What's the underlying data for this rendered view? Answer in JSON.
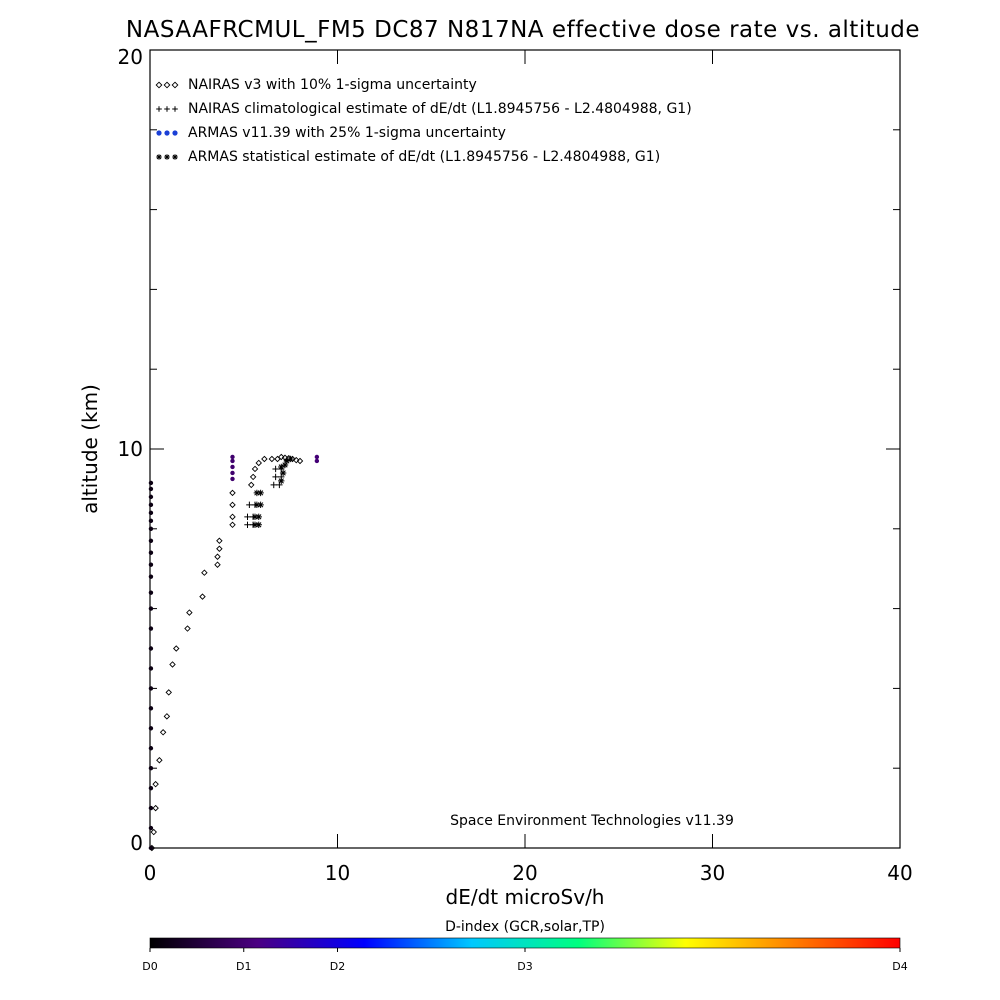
{
  "chart_data": {
    "type": "scatter",
    "title": "NASAAFRCMUL_FM5 DC87 N817NA effective dose rate vs. altitude",
    "xlabel": "dE/dt microSv/h",
    "ylabel": "altitude (km)",
    "xlim": [
      0,
      40
    ],
    "ylim": [
      0,
      20
    ],
    "x_ticks": [
      "0",
      "10",
      "20",
      "30",
      "40"
    ],
    "y_ticks": [
      "0",
      "10",
      "20"
    ],
    "legend_placement": "top-left",
    "legend": [
      {
        "marker": "diamond",
        "color": "#000000",
        "label": "NAIRAS v3 with 10% 1-sigma uncertainty"
      },
      {
        "marker": "plus",
        "color": "#000000",
        "label": "NAIRAS climatological estimate of dE/dt (L1.8945756 - L2.4804988, G1)"
      },
      {
        "marker": "dot",
        "color": "#1a3fd6",
        "label": "ARMAS v11.39 with 25% 1-sigma uncertainty"
      },
      {
        "marker": "asterisk",
        "color": "#000000",
        "label": "ARMAS statistical estimate of dE/dt (L1.8945756 - L2.4804988, G1)"
      }
    ],
    "annotation": "Space Environment Technologies v11.39",
    "colorbar": {
      "title": "D-index (GCR,solar,TP)",
      "labels": [
        {
          "text": "D0",
          "pos": 0
        },
        {
          "text": "D1",
          "pos": 0.125
        },
        {
          "text": "D2",
          "pos": 0.25
        },
        {
          "text": "D3",
          "pos": 0.5
        },
        {
          "text": "D4",
          "pos": 1
        }
      ],
      "colors": [
        "#000000",
        "#4b0082",
        "#0000ff",
        "#00c8ff",
        "#00ff7f",
        "#ffff00",
        "#ff7f00",
        "#ff0000"
      ]
    },
    "series": [
      {
        "kind": "nairas",
        "marker": "diamond",
        "color": "#000000",
        "points": [
          [
            0.1,
            0.0
          ],
          [
            0.2,
            0.4
          ],
          [
            0.3,
            1.0
          ],
          [
            0.3,
            1.6
          ],
          [
            0.5,
            2.2
          ],
          [
            0.7,
            2.9
          ],
          [
            0.9,
            3.3
          ],
          [
            1.0,
            3.9
          ],
          [
            1.2,
            4.6
          ],
          [
            1.4,
            5.0
          ],
          [
            2.0,
            5.5
          ],
          [
            2.1,
            5.9
          ],
          [
            2.8,
            6.3
          ],
          [
            2.9,
            6.9
          ],
          [
            3.6,
            7.1
          ],
          [
            3.6,
            7.3
          ],
          [
            3.7,
            7.5
          ],
          [
            3.7,
            7.7
          ],
          [
            4.4,
            8.1
          ],
          [
            4.4,
            8.3
          ],
          [
            4.4,
            8.6
          ],
          [
            4.4,
            8.9
          ],
          [
            5.4,
            9.1
          ],
          [
            5.5,
            9.3
          ],
          [
            5.6,
            9.5
          ],
          [
            5.8,
            9.65
          ],
          [
            6.1,
            9.75
          ],
          [
            6.5,
            9.75
          ],
          [
            6.8,
            9.75
          ],
          [
            7.0,
            9.8
          ],
          [
            7.2,
            9.78
          ],
          [
            7.4,
            9.77
          ],
          [
            7.6,
            9.75
          ],
          [
            7.8,
            9.72
          ],
          [
            8.0,
            9.7
          ]
        ]
      },
      {
        "kind": "nairas_climatological",
        "marker": "plus",
        "color": "#000000",
        "points": [
          [
            5.2,
            8.1
          ],
          [
            5.5,
            8.1
          ],
          [
            5.2,
            8.3
          ],
          [
            5.5,
            8.3
          ],
          [
            5.3,
            8.6
          ],
          [
            5.6,
            8.6
          ],
          [
            6.6,
            9.1
          ],
          [
            6.9,
            9.1
          ],
          [
            6.7,
            9.3
          ],
          [
            7.0,
            9.3
          ],
          [
            6.7,
            9.5
          ],
          [
            7.0,
            9.5
          ]
        ]
      },
      {
        "kind": "armas_statistical",
        "marker": "asterisk",
        "color": "#000000",
        "points": [
          [
            5.6,
            8.1
          ],
          [
            5.8,
            8.1
          ],
          [
            5.6,
            8.3
          ],
          [
            5.8,
            8.3
          ],
          [
            5.7,
            8.6
          ],
          [
            5.9,
            8.6
          ],
          [
            5.7,
            8.9
          ],
          [
            5.9,
            8.9
          ],
          [
            7.0,
            9.2
          ],
          [
            7.1,
            9.4
          ],
          [
            7.0,
            9.55
          ],
          [
            7.2,
            9.6
          ],
          [
            7.3,
            9.7
          ],
          [
            7.5,
            9.75
          ]
        ]
      },
      {
        "kind": "armas",
        "marker": "dot",
        "color_by": "D-index",
        "points": [
          [
            0.05,
            0.0,
            0.02
          ],
          [
            0.05,
            0.5,
            0.02
          ],
          [
            0.05,
            1.0,
            0.02
          ],
          [
            0.05,
            1.5,
            0.02
          ],
          [
            0.05,
            2.0,
            0.02
          ],
          [
            0.05,
            2.5,
            0.02
          ],
          [
            0.05,
            3.0,
            0.02
          ],
          [
            0.05,
            3.5,
            0.02
          ],
          [
            0.05,
            4.0,
            0.02
          ],
          [
            0.05,
            4.5,
            0.02
          ],
          [
            0.05,
            5.0,
            0.02
          ],
          [
            0.05,
            5.5,
            0.02
          ],
          [
            0.05,
            6.0,
            0.02
          ],
          [
            0.05,
            6.4,
            0.02
          ],
          [
            0.05,
            6.8,
            0.02
          ],
          [
            0.05,
            7.1,
            0.02
          ],
          [
            0.05,
            7.4,
            0.02
          ],
          [
            0.05,
            7.7,
            0.02
          ],
          [
            0.05,
            8.0,
            0.02
          ],
          [
            0.05,
            8.2,
            0.02
          ],
          [
            0.05,
            8.4,
            0.02
          ],
          [
            0.05,
            8.6,
            0.02
          ],
          [
            0.05,
            8.8,
            0.02
          ],
          [
            0.05,
            9.0,
            0.02
          ],
          [
            0.05,
            9.15,
            0.02
          ],
          [
            4.4,
            9.25,
            0.12
          ],
          [
            4.4,
            9.4,
            0.12
          ],
          [
            4.4,
            9.55,
            0.12
          ],
          [
            4.4,
            9.7,
            0.12
          ],
          [
            4.4,
            9.8,
            0.12
          ],
          [
            8.9,
            9.7,
            0.13
          ],
          [
            8.9,
            9.8,
            0.13
          ]
        ]
      }
    ]
  }
}
